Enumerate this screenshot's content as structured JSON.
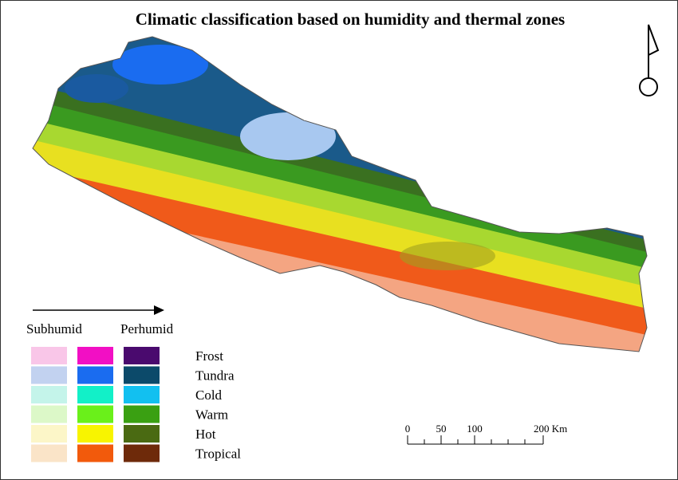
{
  "title": "Climatic classification based on humidity and thermal zones",
  "legend": {
    "left_label": "Subhumid",
    "right_label": "Perhumid",
    "rows": [
      {
        "label": "Frost",
        "colors": [
          "#f9c6e8",
          "#f20fc4",
          "#4a0a6e"
        ]
      },
      {
        "label": "Tundra",
        "colors": [
          "#c2d2f0",
          "#1a6cf0",
          "#0c4a6a"
        ]
      },
      {
        "label": "Cold",
        "colors": [
          "#c4f4ea",
          "#12f0c8",
          "#12c0f0"
        ]
      },
      {
        "label": "Warm",
        "colors": [
          "#dcf8c8",
          "#6af01a",
          "#3aa012"
        ]
      },
      {
        "label": "Hot",
        "colors": [
          "#fcf6c8",
          "#f8f400",
          "#4a6a12"
        ]
      },
      {
        "label": "Tropical",
        "colors": [
          "#fae4c8",
          "#f25a0c",
          "#6e2a0a"
        ]
      }
    ]
  },
  "scale": {
    "labels": [
      "0",
      "50",
      "100",
      "200 Km"
    ]
  }
}
